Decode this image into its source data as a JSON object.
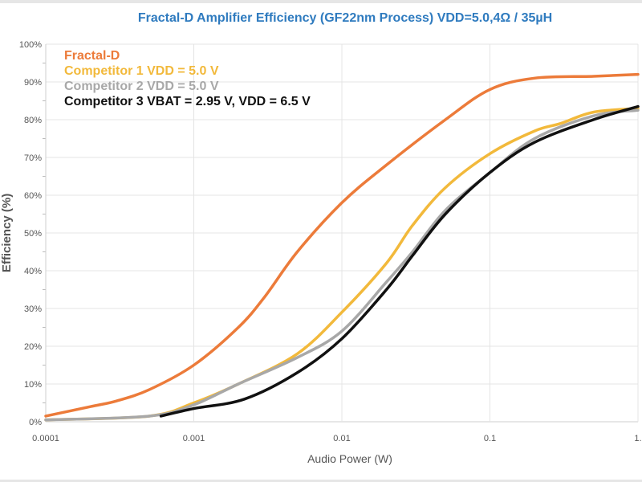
{
  "chart_data": {
    "type": "line",
    "title": "Fractal-D Amplifier Efficiency (GF22nm Process) VDD=5.0,4Ω / 35µH",
    "xlabel": "Audio Power (W)",
    "ylabel": "Efficiency (%)",
    "xscale": "log",
    "xlim": [
      0.0001,
      1
    ],
    "ylim": [
      0,
      100
    ],
    "xticks": [
      "0.0001",
      "0.001",
      "0.01",
      "0.1",
      "1."
    ],
    "yticks": [
      "0%",
      "10%",
      "20%",
      "30%",
      "40%",
      "50%",
      "60%",
      "70%",
      "80%",
      "90%",
      "100%"
    ],
    "grid": true,
    "legend": "top-left",
    "series": [
      {
        "name": "Fractal-D",
        "color": "#ec7b3a",
        "x": [
          0.0001,
          0.0002,
          0.0003,
          0.0005,
          0.001,
          0.002,
          0.003,
          0.005,
          0.01,
          0.02,
          0.05,
          0.1,
          0.2,
          0.5,
          1
        ],
        "y": [
          1.5,
          4,
          5.5,
          8.5,
          15,
          25,
          33,
          45,
          58,
          68,
          80,
          88,
          91,
          91.5,
          92
        ]
      },
      {
        "name": "Competitor 1 VDD = 5.0 V",
        "color": "#f2b93b",
        "x": [
          0.0001,
          0.0005,
          0.001,
          0.002,
          0.005,
          0.01,
          0.02,
          0.03,
          0.05,
          0.1,
          0.2,
          0.3,
          0.5,
          1
        ],
        "y": [
          0.5,
          1.5,
          5,
          10,
          18,
          29,
          42,
          52,
          62,
          71,
          77,
          79,
          82,
          83
        ]
      },
      {
        "name": "Competitor 2 VDD = 5.0 V",
        "color": "#a8a8a8",
        "x": [
          0.0001,
          0.0005,
          0.001,
          0.002,
          0.005,
          0.01,
          0.02,
          0.03,
          0.05,
          0.1,
          0.2,
          0.5,
          1
        ],
        "y": [
          0.5,
          1.5,
          4.5,
          10,
          17,
          24,
          37,
          45,
          56,
          66,
          75,
          81,
          82.5
        ]
      },
      {
        "name": "Competitor 3 VBAT = 2.95 V, VDD = 6.5 V",
        "color": "#111111",
        "x": [
          0.0006,
          0.001,
          0.0022,
          0.005,
          0.01,
          0.02,
          0.03,
          0.05,
          0.1,
          0.2,
          0.5,
          1
        ],
        "y": [
          1.5,
          3.5,
          6,
          13,
          22,
          35,
          44,
          55,
          66,
          74,
          80,
          83.5
        ]
      }
    ]
  }
}
